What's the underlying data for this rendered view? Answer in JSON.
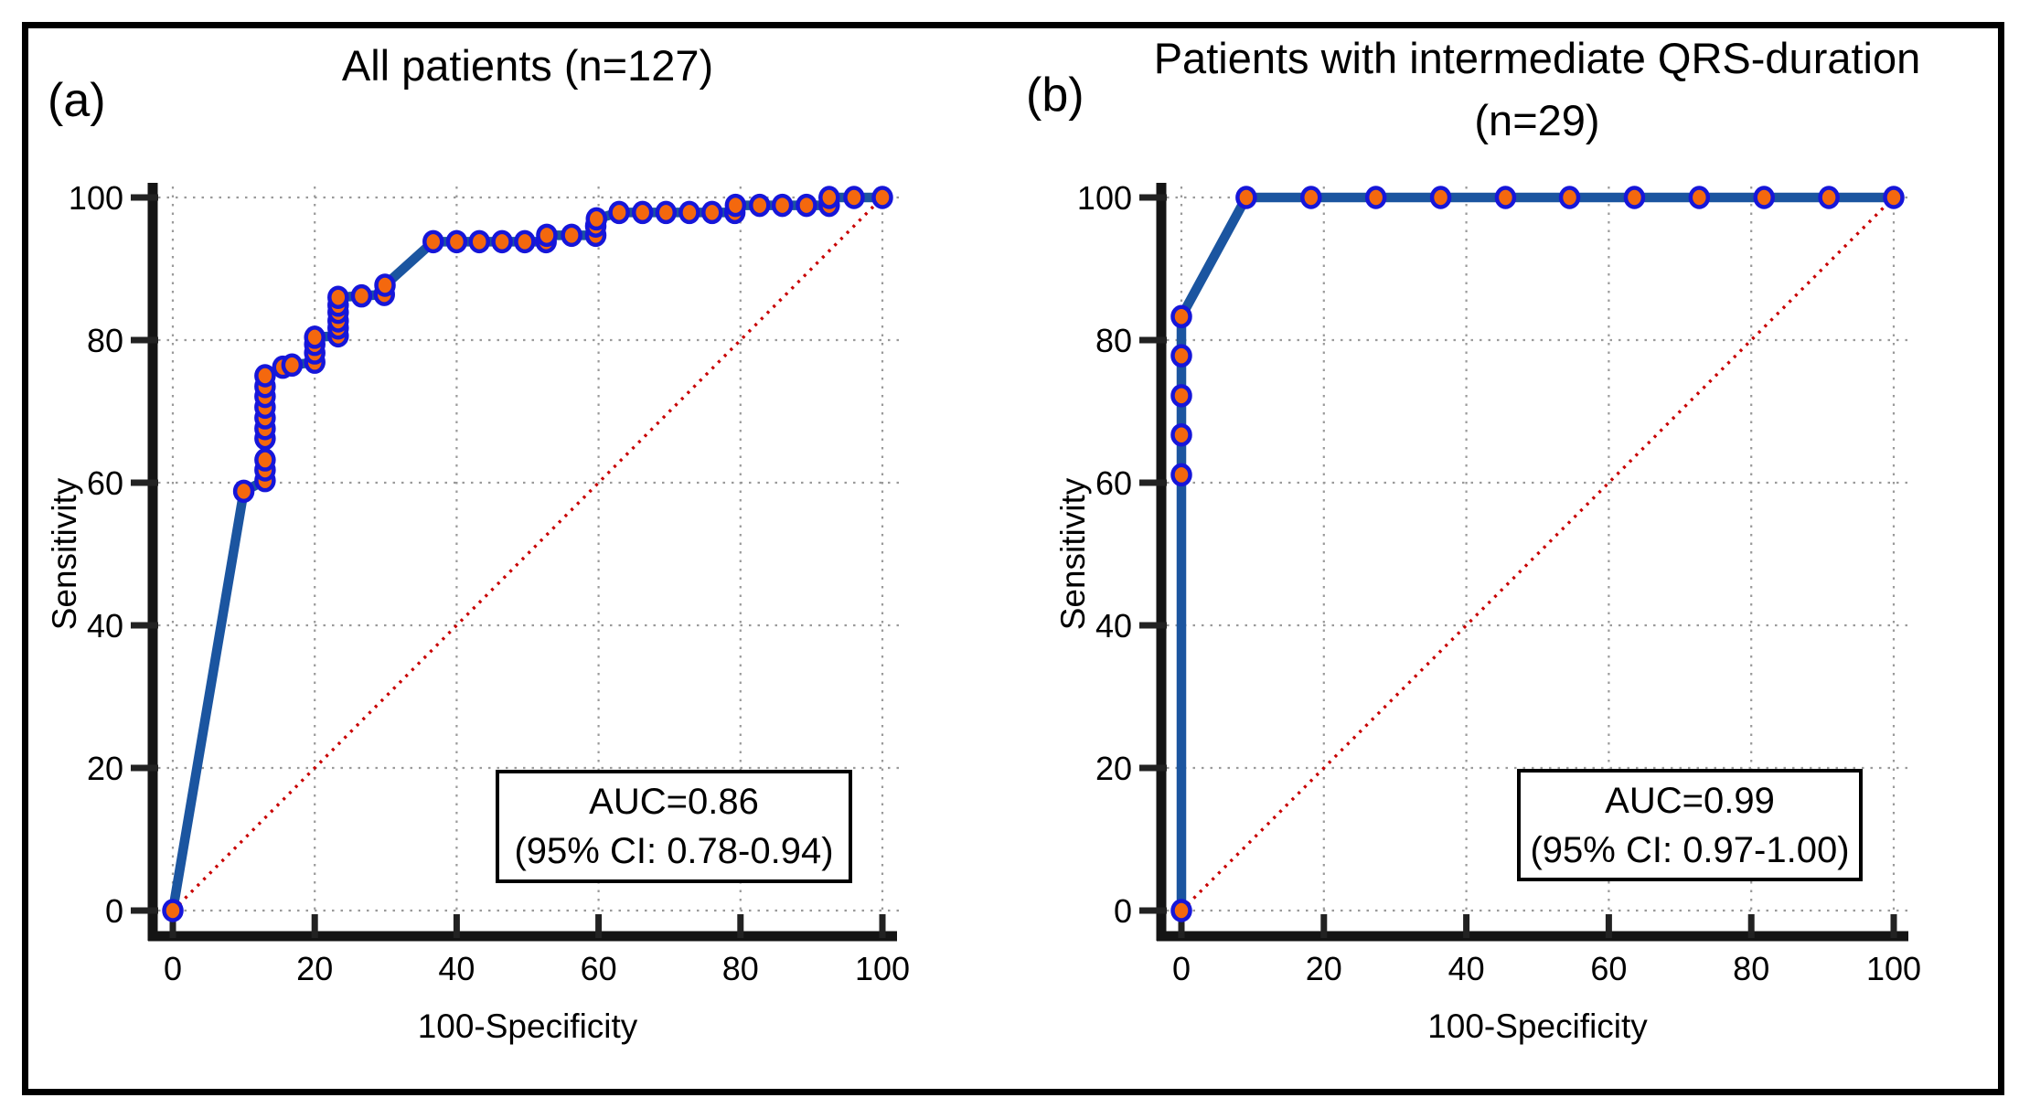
{
  "figure": {
    "background": "#ffffff",
    "border_color": "#000000"
  },
  "colors": {
    "roc_line": "#1B55A0",
    "marker_fill": "#F4680E",
    "marker_stroke": "#1616D9",
    "diagonal": "#C80000",
    "grid": "#9A9A9A",
    "axis": "#141414",
    "tick": "#222222",
    "text": "#000000"
  },
  "chart_data": [
    {
      "type": "line",
      "panel_label": "(a)",
      "title": "All patients (n=127)",
      "subtitle": "",
      "xlabel": "100-Specificity",
      "ylabel": "Sensitivity",
      "xlim": [
        0,
        100
      ],
      "ylim": [
        0,
        100
      ],
      "xticks": [
        0,
        20,
        40,
        60,
        80,
        100
      ],
      "yticks": [
        0,
        20,
        40,
        60,
        80,
        100
      ],
      "grid": true,
      "legend": "none",
      "annotation": {
        "line1": "AUC=0.86",
        "line2": "(95% CI: 0.78-0.94)"
      },
      "diagonal": {
        "from": [
          0,
          0
        ],
        "to": [
          100,
          100
        ]
      },
      "series": [
        {
          "name": "ROC curve",
          "points": [
            [
              0,
              0
            ],
            [
              10,
              58.8
            ],
            [
              13,
              60.3
            ],
            [
              13,
              61.8
            ],
            [
              13,
              63.2
            ],
            [
              13,
              66.2
            ],
            [
              13,
              67.6
            ],
            [
              13,
              69.1
            ],
            [
              13,
              70.6
            ],
            [
              13,
              72.1
            ],
            [
              13,
              73.5
            ],
            [
              13,
              75
            ],
            [
              15.5,
              76.2
            ],
            [
              16.8,
              76.5
            ],
            [
              20,
              76.9
            ],
            [
              20,
              78.2
            ],
            [
              20,
              79.4
            ],
            [
              20,
              80.4
            ],
            [
              23.3,
              80.6
            ],
            [
              23.3,
              81.7
            ],
            [
              23.3,
              82.7
            ],
            [
              23.3,
              83.9
            ],
            [
              23.3,
              84.9
            ],
            [
              23.3,
              86
            ],
            [
              26.6,
              86.2
            ],
            [
              29.8,
              86.4
            ],
            [
              29.9,
              87.7
            ],
            [
              36.7,
              93.8
            ],
            [
              40,
              93.8
            ],
            [
              43.2,
              93.8
            ],
            [
              46.4,
              93.8
            ],
            [
              49.6,
              93.8
            ],
            [
              52.6,
              93.8
            ],
            [
              52.7,
              94.7
            ],
            [
              56.2,
              94.7
            ],
            [
              59.6,
              94.7
            ],
            [
              59.6,
              96
            ],
            [
              59.7,
              97
            ],
            [
              62.9,
              97.9
            ],
            [
              66.2,
              97.9
            ],
            [
              69.5,
              97.9
            ],
            [
              72.8,
              97.9
            ],
            [
              76,
              97.9
            ],
            [
              79.2,
              97.9
            ],
            [
              79.3,
              98.9
            ],
            [
              82.7,
              98.9
            ],
            [
              85.9,
              98.9
            ],
            [
              89.3,
              98.9
            ],
            [
              92.5,
              98.9
            ],
            [
              92.5,
              100
            ],
            [
              96,
              100
            ],
            [
              100,
              100
            ]
          ]
        }
      ]
    },
    {
      "type": "line",
      "panel_label": "(b)",
      "title": "Patients with intermediate QRS-duration",
      "subtitle": "(n=29)",
      "xlabel": "100-Specificity",
      "ylabel": "Sensitivity",
      "xlim": [
        0,
        100
      ],
      "ylim": [
        0,
        100
      ],
      "xticks": [
        0,
        20,
        40,
        60,
        80,
        100
      ],
      "yticks": [
        0,
        20,
        40,
        60,
        80,
        100
      ],
      "grid": true,
      "legend": "none",
      "annotation": {
        "line1": "AUC=0.99",
        "line2": "(95% CI: 0.97-1.00)"
      },
      "diagonal": {
        "from": [
          0,
          0
        ],
        "to": [
          100,
          100
        ]
      },
      "series": [
        {
          "name": "ROC curve",
          "points": [
            [
              0,
              0
            ],
            [
              0,
              61.1
            ],
            [
              0,
              66.7
            ],
            [
              0,
              72.2
            ],
            [
              0,
              77.8
            ],
            [
              0,
              83.3
            ],
            [
              9.1,
              100
            ],
            [
              18.2,
              100
            ],
            [
              27.3,
              100
            ],
            [
              36.4,
              100
            ],
            [
              45.5,
              100
            ],
            [
              54.5,
              100
            ],
            [
              63.6,
              100
            ],
            [
              72.7,
              100
            ],
            [
              81.8,
              100
            ],
            [
              90.9,
              100
            ],
            [
              100,
              100
            ]
          ]
        }
      ]
    }
  ]
}
